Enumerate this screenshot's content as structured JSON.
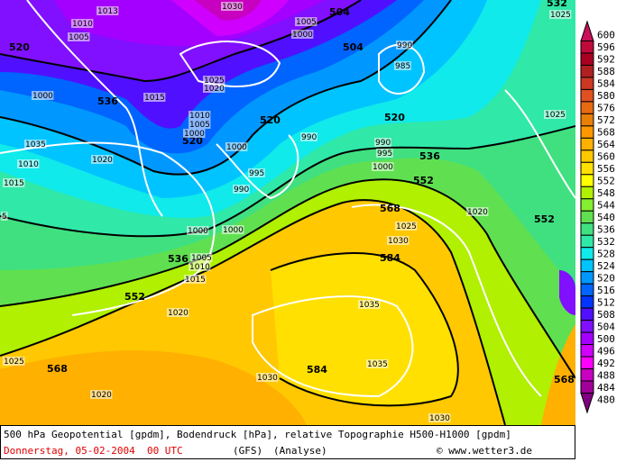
{
  "caption": {
    "line1": "500 hPa Geopotential [gpdm], Bodendruck [hPa], relative Topographie H500-H1000 [gpdm]",
    "date": "Donnerstag, 05-02-2004  00 UTC",
    "model": "(GFS)",
    "type": "(Analyse)",
    "copyright": "© www.wetter3.de"
  },
  "legend": {
    "levels": [
      600,
      596,
      592,
      588,
      584,
      580,
      576,
      572,
      568,
      564,
      560,
      556,
      552,
      548,
      544,
      540,
      536,
      532,
      528,
      524,
      520,
      516,
      512,
      508,
      504,
      500,
      496,
      492,
      488,
      484,
      480
    ],
    "colors": [
      "#c8105a",
      "#c00a3c",
      "#a80020",
      "#b02020",
      "#cc3822",
      "#e05020",
      "#e86a10",
      "#e88008",
      "#ff9800",
      "#ffb000",
      "#ffc800",
      "#ffe000",
      "#ffff00",
      "#b0f000",
      "#84ee30",
      "#60e050",
      "#40e080",
      "#30e8a8",
      "#10eaea",
      "#00c4ff",
      "#0098ff",
      "#0064ff",
      "#0034ff",
      "#5010ff",
      "#8010ff",
      "#a400ff",
      "#d000ff",
      "#ff00ff",
      "#c800c0",
      "#a00098",
      "#800080"
    ]
  },
  "geopotential_labels": [
    "504",
    "504",
    "520",
    "536",
    "520",
    "520",
    "520",
    "536",
    "552",
    "552",
    "568",
    "584",
    "536",
    "552",
    "568",
    "584",
    "568",
    "532"
  ],
  "pressure_labels": [
    "1013",
    "1010",
    "1005",
    "1030",
    "1005",
    "1000",
    "990",
    "985",
    "1025",
    "1020",
    "1015",
    "1000",
    "1010",
    "1005",
    "1000",
    "990",
    "1000",
    "1025",
    "1025",
    "1035",
    "1010",
    "1015",
    "1020",
    "995",
    "990",
    "990",
    "995",
    "1000",
    "1000",
    "1000",
    "1020",
    "1025",
    "1030",
    "1005",
    "1010",
    "1015",
    "1020",
    "1035",
    "1025",
    "1030",
    "1035",
    "1020",
    "1030",
    "5"
  ]
}
